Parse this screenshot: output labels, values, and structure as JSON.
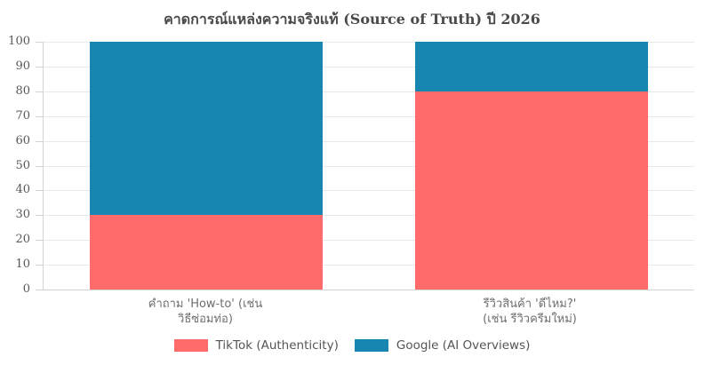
{
  "chart_data": {
    "type": "bar",
    "stacked": true,
    "title": "คาดการณ์แหล่งความจริงแท้ (Source of Truth) ปี 2026",
    "categories": [
      "คำถาม 'How-to' (เช่น วิธีซ่อมท่อ)",
      "รีวิวสินค้า 'ดีไหม?' (เช่น รีวิวครีมใหม่)"
    ],
    "category_lines": [
      [
        "คำถาม 'How-to' (เช่น",
        "วิธีซ่อมท่อ)"
      ],
      [
        "รีวิวสินค้า 'ดีไหม?'",
        "(เช่น รีวิวครีมใหม่)"
      ]
    ],
    "series": [
      {
        "name": "TikTok (Authenticity)",
        "color": "#FF6B6B",
        "values": [
          30,
          80
        ]
      },
      {
        "name": "Google (AI Overviews)",
        "color": "#1787B1",
        "values": [
          70,
          20
        ]
      }
    ],
    "ylim": [
      0,
      100
    ],
    "yticks": [
      0,
      10,
      20,
      30,
      40,
      50,
      60,
      70,
      80,
      90,
      100
    ],
    "xlabel": "",
    "ylabel": "",
    "grid": true,
    "legend_position": "bottom"
  },
  "colors": {
    "background": "#ffffff",
    "grid": "#e8e8e8",
    "axis": "#d4d4d4",
    "title_text": "#4a4a4a",
    "tick_text": "#595959",
    "label_text": "#6e6e6e",
    "legend_text": "#555555"
  }
}
